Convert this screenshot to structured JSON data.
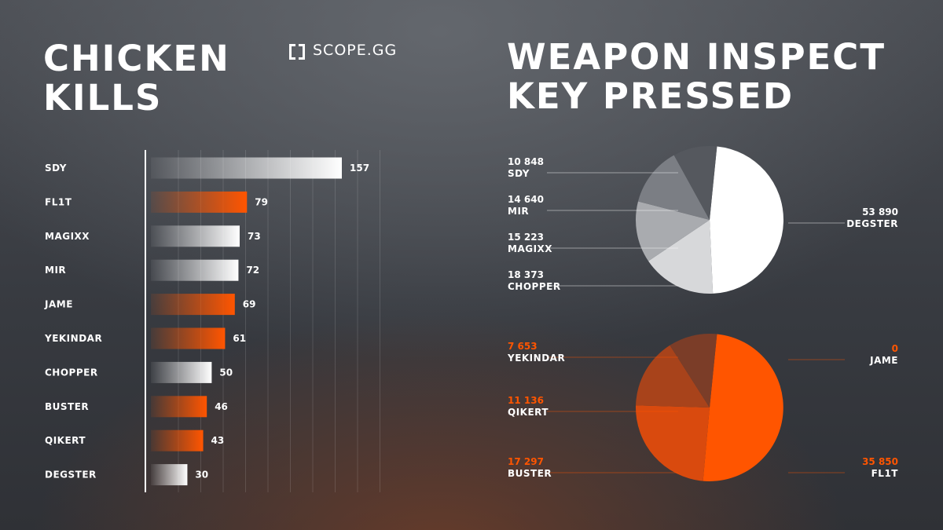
{
  "logo": {
    "text": "SCOPE.GG"
  },
  "colors": {
    "orange": "#ff5500",
    "white": "#ffffff",
    "grey": "#9ea0a6"
  },
  "chart_data": [
    {
      "type": "bar",
      "title": "CHICKEN KILLS",
      "orientation": "horizontal",
      "categories": [
        "SDY",
        "FL1T",
        "MAGIXX",
        "MIR",
        "JAME",
        "YEKINDAR",
        "CHOPPER",
        "BUSTER",
        "QIKERT",
        "DEGSTER"
      ],
      "values": [
        157,
        79,
        73,
        72,
        69,
        61,
        50,
        46,
        43,
        30
      ],
      "bar_colors": [
        "white",
        "orange",
        "white",
        "white",
        "orange",
        "orange",
        "white",
        "orange",
        "orange",
        "white"
      ],
      "xlim": [
        0,
        157
      ],
      "grid": true
    },
    {
      "type": "pie",
      "title": "WEAPON INSPECT KEY PRESSED",
      "series": [
        {
          "slices": [
            {
              "label": "DEGSTER",
              "value": 53890,
              "display": "53 890",
              "shade": "#ffffff"
            },
            {
              "label": "CHOPPER",
              "value": 18373,
              "display": "18 373",
              "shade": "#d7d8da"
            },
            {
              "label": "MAGIXX",
              "value": 15223,
              "display": "15 223",
              "shade": "#a9abaf"
            },
            {
              "label": "MIR",
              "value": 14640,
              "display": "14 640",
              "shade": "#7b7e84"
            },
            {
              "label": "SDY",
              "value": 10848,
              "display": "10 848",
              "shade": "#55585e"
            }
          ]
        },
        {
          "slices": [
            {
              "label": "FL1T",
              "value": 35850,
              "display": "35 850",
              "shade": "#ff5500"
            },
            {
              "label": "BUSTER",
              "value": 17297,
              "display": "17 297",
              "shade": "#d94a0e"
            },
            {
              "label": "QIKERT",
              "value": 11136,
              "display": "11 136",
              "shade": "#a8431b"
            },
            {
              "label": "YEKINDAR",
              "value": 7653,
              "display": "7 653",
              "shade": "#7b3d28"
            },
            {
              "label": "JAME",
              "value": 0,
              "display": "0",
              "shade": "#ff5500"
            }
          ]
        }
      ]
    }
  ]
}
